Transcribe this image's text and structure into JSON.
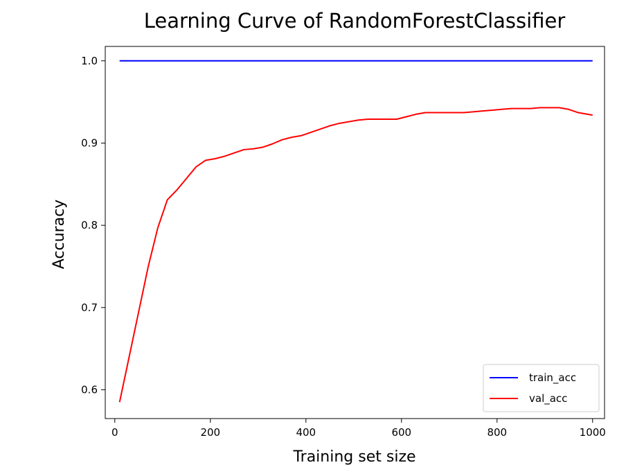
{
  "chart_data": {
    "type": "line",
    "title": "Learning Curve of RandomForestClassifier",
    "xlabel": "Training set size",
    "ylabel": "Accuracy",
    "xlim": [
      -20,
      1025
    ],
    "ylim": [
      0.565,
      1.0175
    ],
    "xticks": [
      0,
      200,
      400,
      600,
      800,
      1000
    ],
    "yticks": [
      0.6,
      0.7,
      0.8,
      0.9,
      1.0
    ],
    "xtick_labels": [
      "0",
      "200",
      "400",
      "600",
      "800",
      "1000"
    ],
    "ytick_labels": [
      "0.6",
      "0.7",
      "0.8",
      "0.9",
      "1.0"
    ],
    "legend_position": "lower-right",
    "grid": false,
    "series": [
      {
        "name": "train_acc",
        "color": "#0000ff",
        "x": [
          10,
          1000
        ],
        "y": [
          1.0,
          1.0
        ]
      },
      {
        "name": "val_acc",
        "color": "#ff0000",
        "x": [
          10,
          30,
          50,
          70,
          90,
          110,
          130,
          150,
          170,
          190,
          210,
          230,
          250,
          270,
          290,
          310,
          330,
          350,
          370,
          390,
          410,
          430,
          450,
          470,
          490,
          510,
          530,
          550,
          570,
          590,
          610,
          630,
          650,
          670,
          690,
          710,
          730,
          750,
          770,
          790,
          810,
          830,
          850,
          870,
          890,
          910,
          930,
          950,
          970,
          1000
        ],
        "y": [
          0.585,
          0.64,
          0.695,
          0.75,
          0.797,
          0.831,
          0.843,
          0.857,
          0.871,
          0.879,
          0.881,
          0.884,
          0.888,
          0.892,
          0.893,
          0.895,
          0.899,
          0.904,
          0.907,
          0.909,
          0.913,
          0.917,
          0.921,
          0.924,
          0.926,
          0.928,
          0.929,
          0.929,
          0.929,
          0.929,
          0.932,
          0.935,
          0.937,
          0.937,
          0.937,
          0.937,
          0.937,
          0.938,
          0.939,
          0.94,
          0.941,
          0.942,
          0.942,
          0.942,
          0.943,
          0.943,
          0.943,
          0.941,
          0.937,
          0.934
        ]
      }
    ]
  }
}
